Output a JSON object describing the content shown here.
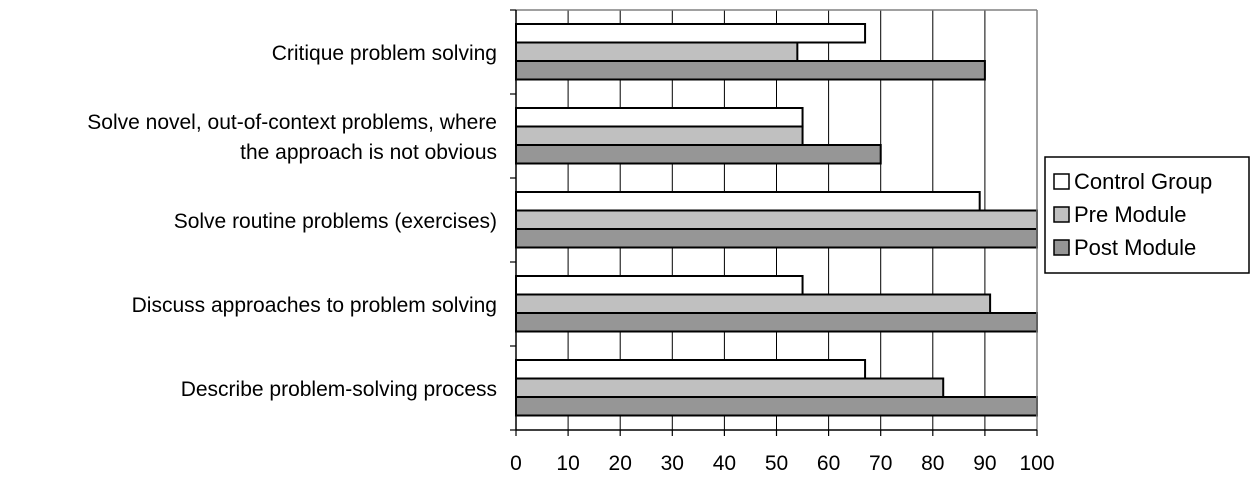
{
  "chart_data": {
    "type": "bar",
    "orientation": "horizontal",
    "title": "",
    "xlabel": "",
    "ylabel": "",
    "xlim": [
      0,
      100
    ],
    "xticks": [
      0,
      10,
      20,
      30,
      40,
      50,
      60,
      70,
      80,
      90,
      100
    ],
    "grid": "vertical",
    "legend_position": "right",
    "categories": [
      [
        "Critique problem solving"
      ],
      [
        "Solve novel, out-of-context problems, where",
        "the approach is not obvious"
      ],
      [
        "Solve routine problems (exercises)"
      ],
      [
        "Discuss approaches to problem solving"
      ],
      [
        "Describe problem-solving process"
      ]
    ],
    "series": [
      {
        "name": "Control Group",
        "color": "#ffffff",
        "values": [
          67,
          55,
          89,
          55,
          67
        ]
      },
      {
        "name": "Pre Module",
        "color": "#c0c0c0",
        "values": [
          54,
          55,
          100,
          91,
          82
        ]
      },
      {
        "name": "Post Module",
        "color": "#969696",
        "values": [
          90,
          70,
          100,
          100,
          100
        ]
      }
    ]
  }
}
